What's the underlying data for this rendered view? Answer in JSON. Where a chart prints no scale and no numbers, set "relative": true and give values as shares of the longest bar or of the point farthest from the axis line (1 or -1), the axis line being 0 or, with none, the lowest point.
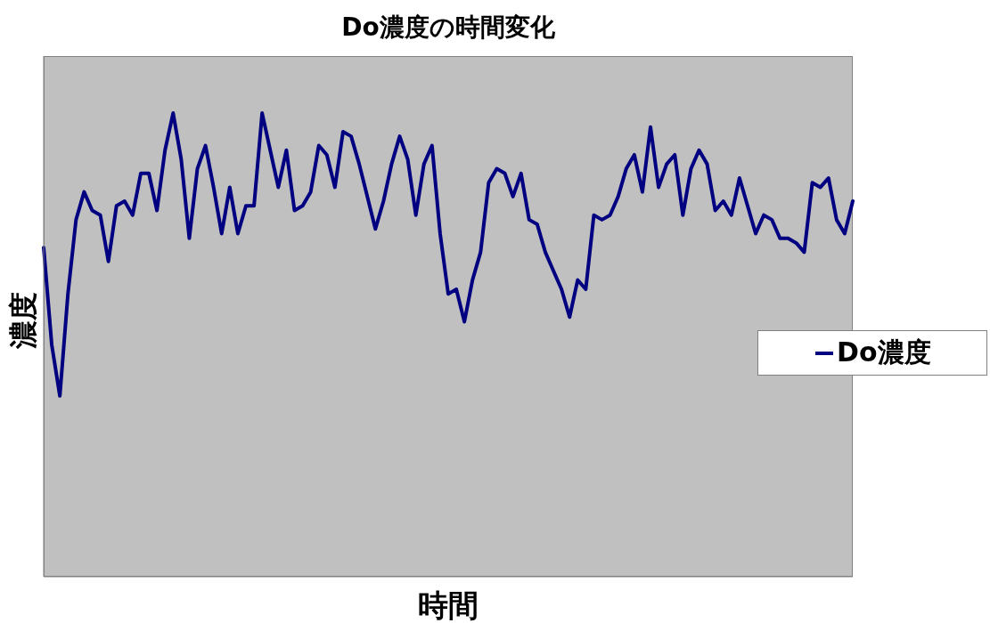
{
  "chart_data": {
    "type": "line",
    "title": "Do濃度の時間変化",
    "xlabel": "時間",
    "ylabel": "濃度",
    "relative": true,
    "legend": "right",
    "marker": "none",
    "line_style": "solid",
    "categories": [
      null,
      null,
      null,
      null,
      null,
      null,
      null,
      null,
      null,
      null,
      null,
      null,
      null,
      null,
      null,
      null,
      null,
      null,
      null,
      null,
      null,
      null,
      null,
      null,
      null,
      null,
      null,
      null,
      null,
      null,
      null,
      null,
      null,
      null,
      null,
      null,
      null,
      null,
      null,
      null,
      null,
      null,
      null,
      null,
      null,
      null,
      null,
      null,
      null,
      null,
      null,
      null,
      null,
      null,
      null,
      null,
      null,
      null,
      null,
      null,
      null,
      null,
      null,
      null,
      null,
      null,
      null,
      null,
      null,
      null,
      null,
      null,
      null,
      null,
      null,
      null,
      null,
      null,
      null,
      null,
      null,
      null,
      null,
      null,
      null,
      null,
      null,
      null,
      null,
      null,
      null,
      null,
      null,
      null,
      null,
      null,
      null,
      null,
      null,
      null,
      null
    ],
    "series": [
      {
        "name": "Do濃度",
        "color": "#000080",
        "values": [
          0.71,
          0.5,
          0.39,
          0.61,
          0.77,
          0.83,
          0.79,
          0.78,
          0.68,
          0.8,
          0.81,
          0.78,
          0.87,
          0.87,
          0.79,
          0.92,
          1.0,
          0.9,
          0.73,
          0.88,
          0.93,
          0.84,
          0.74,
          0.84,
          0.74,
          0.8,
          0.8,
          1.0,
          0.92,
          0.84,
          0.92,
          0.79,
          0.8,
          0.83,
          0.93,
          0.91,
          0.84,
          0.96,
          0.95,
          0.89,
          0.82,
          0.75,
          0.81,
          0.89,
          0.95,
          0.9,
          0.78,
          0.89,
          0.93,
          0.74,
          0.61,
          0.62,
          0.55,
          0.64,
          0.7,
          0.85,
          0.88,
          0.87,
          0.82,
          0.87,
          0.77,
          0.76,
          0.7,
          0.66,
          0.62,
          0.56,
          0.64,
          0.62,
          0.78,
          0.77,
          0.78,
          0.82,
          0.88,
          0.91,
          0.83,
          0.97,
          0.84,
          0.89,
          0.91,
          0.78,
          0.88,
          0.92,
          0.89,
          0.79,
          0.81,
          0.78,
          0.86,
          0.8,
          0.74,
          0.78,
          0.77,
          0.73,
          0.73,
          0.72,
          0.7,
          0.85,
          0.84,
          0.86,
          0.77,
          0.74,
          0.81
        ]
      }
    ]
  }
}
